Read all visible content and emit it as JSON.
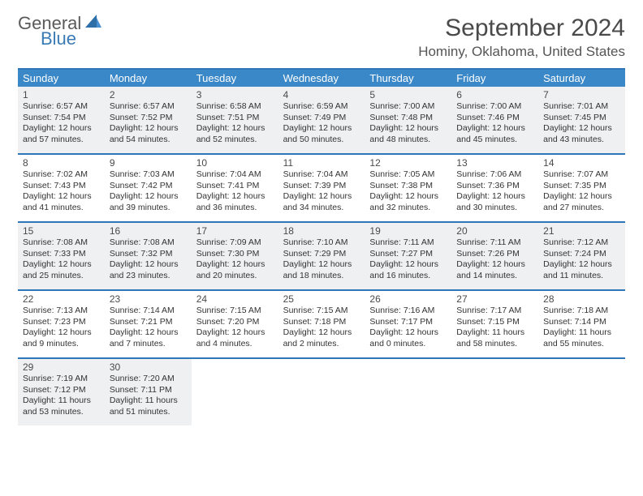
{
  "logo": {
    "general": "General",
    "blue": "Blue"
  },
  "title": "September 2024",
  "location": "Hominy, Oklahoma, United States",
  "colors": {
    "header_bg": "#3b88c8",
    "border": "#2f77b6",
    "shaded_bg": "#eef0f1",
    "text": "#333333",
    "logo_gray": "#5a5a5a",
    "logo_blue": "#3b7bb5"
  },
  "day_names": [
    "Sunday",
    "Monday",
    "Tuesday",
    "Wednesday",
    "Thursday",
    "Friday",
    "Saturday"
  ],
  "weeks": [
    {
      "shaded": true,
      "days": [
        {
          "n": "1",
          "sunrise": "Sunrise: 6:57 AM",
          "sunset": "Sunset: 7:54 PM",
          "day1": "Daylight: 12 hours",
          "day2": "and 57 minutes."
        },
        {
          "n": "2",
          "sunrise": "Sunrise: 6:57 AM",
          "sunset": "Sunset: 7:52 PM",
          "day1": "Daylight: 12 hours",
          "day2": "and 54 minutes."
        },
        {
          "n": "3",
          "sunrise": "Sunrise: 6:58 AM",
          "sunset": "Sunset: 7:51 PM",
          "day1": "Daylight: 12 hours",
          "day2": "and 52 minutes."
        },
        {
          "n": "4",
          "sunrise": "Sunrise: 6:59 AM",
          "sunset": "Sunset: 7:49 PM",
          "day1": "Daylight: 12 hours",
          "day2": "and 50 minutes."
        },
        {
          "n": "5",
          "sunrise": "Sunrise: 7:00 AM",
          "sunset": "Sunset: 7:48 PM",
          "day1": "Daylight: 12 hours",
          "day2": "and 48 minutes."
        },
        {
          "n": "6",
          "sunrise": "Sunrise: 7:00 AM",
          "sunset": "Sunset: 7:46 PM",
          "day1": "Daylight: 12 hours",
          "day2": "and 45 minutes."
        },
        {
          "n": "7",
          "sunrise": "Sunrise: 7:01 AM",
          "sunset": "Sunset: 7:45 PM",
          "day1": "Daylight: 12 hours",
          "day2": "and 43 minutes."
        }
      ]
    },
    {
      "shaded": false,
      "days": [
        {
          "n": "8",
          "sunrise": "Sunrise: 7:02 AM",
          "sunset": "Sunset: 7:43 PM",
          "day1": "Daylight: 12 hours",
          "day2": "and 41 minutes."
        },
        {
          "n": "9",
          "sunrise": "Sunrise: 7:03 AM",
          "sunset": "Sunset: 7:42 PM",
          "day1": "Daylight: 12 hours",
          "day2": "and 39 minutes."
        },
        {
          "n": "10",
          "sunrise": "Sunrise: 7:04 AM",
          "sunset": "Sunset: 7:41 PM",
          "day1": "Daylight: 12 hours",
          "day2": "and 36 minutes."
        },
        {
          "n": "11",
          "sunrise": "Sunrise: 7:04 AM",
          "sunset": "Sunset: 7:39 PM",
          "day1": "Daylight: 12 hours",
          "day2": "and 34 minutes."
        },
        {
          "n": "12",
          "sunrise": "Sunrise: 7:05 AM",
          "sunset": "Sunset: 7:38 PM",
          "day1": "Daylight: 12 hours",
          "day2": "and 32 minutes."
        },
        {
          "n": "13",
          "sunrise": "Sunrise: 7:06 AM",
          "sunset": "Sunset: 7:36 PM",
          "day1": "Daylight: 12 hours",
          "day2": "and 30 minutes."
        },
        {
          "n": "14",
          "sunrise": "Sunrise: 7:07 AM",
          "sunset": "Sunset: 7:35 PM",
          "day1": "Daylight: 12 hours",
          "day2": "and 27 minutes."
        }
      ]
    },
    {
      "shaded": true,
      "days": [
        {
          "n": "15",
          "sunrise": "Sunrise: 7:08 AM",
          "sunset": "Sunset: 7:33 PM",
          "day1": "Daylight: 12 hours",
          "day2": "and 25 minutes."
        },
        {
          "n": "16",
          "sunrise": "Sunrise: 7:08 AM",
          "sunset": "Sunset: 7:32 PM",
          "day1": "Daylight: 12 hours",
          "day2": "and 23 minutes."
        },
        {
          "n": "17",
          "sunrise": "Sunrise: 7:09 AM",
          "sunset": "Sunset: 7:30 PM",
          "day1": "Daylight: 12 hours",
          "day2": "and 20 minutes."
        },
        {
          "n": "18",
          "sunrise": "Sunrise: 7:10 AM",
          "sunset": "Sunset: 7:29 PM",
          "day1": "Daylight: 12 hours",
          "day2": "and 18 minutes."
        },
        {
          "n": "19",
          "sunrise": "Sunrise: 7:11 AM",
          "sunset": "Sunset: 7:27 PM",
          "day1": "Daylight: 12 hours",
          "day2": "and 16 minutes."
        },
        {
          "n": "20",
          "sunrise": "Sunrise: 7:11 AM",
          "sunset": "Sunset: 7:26 PM",
          "day1": "Daylight: 12 hours",
          "day2": "and 14 minutes."
        },
        {
          "n": "21",
          "sunrise": "Sunrise: 7:12 AM",
          "sunset": "Sunset: 7:24 PM",
          "day1": "Daylight: 12 hours",
          "day2": "and 11 minutes."
        }
      ]
    },
    {
      "shaded": false,
      "days": [
        {
          "n": "22",
          "sunrise": "Sunrise: 7:13 AM",
          "sunset": "Sunset: 7:23 PM",
          "day1": "Daylight: 12 hours",
          "day2": "and 9 minutes."
        },
        {
          "n": "23",
          "sunrise": "Sunrise: 7:14 AM",
          "sunset": "Sunset: 7:21 PM",
          "day1": "Daylight: 12 hours",
          "day2": "and 7 minutes."
        },
        {
          "n": "24",
          "sunrise": "Sunrise: 7:15 AM",
          "sunset": "Sunset: 7:20 PM",
          "day1": "Daylight: 12 hours",
          "day2": "and 4 minutes."
        },
        {
          "n": "25",
          "sunrise": "Sunrise: 7:15 AM",
          "sunset": "Sunset: 7:18 PM",
          "day1": "Daylight: 12 hours",
          "day2": "and 2 minutes."
        },
        {
          "n": "26",
          "sunrise": "Sunrise: 7:16 AM",
          "sunset": "Sunset: 7:17 PM",
          "day1": "Daylight: 12 hours",
          "day2": "and 0 minutes."
        },
        {
          "n": "27",
          "sunrise": "Sunrise: 7:17 AM",
          "sunset": "Sunset: 7:15 PM",
          "day1": "Daylight: 11 hours",
          "day2": "and 58 minutes."
        },
        {
          "n": "28",
          "sunrise": "Sunrise: 7:18 AM",
          "sunset": "Sunset: 7:14 PM",
          "day1": "Daylight: 11 hours",
          "day2": "and 55 minutes."
        }
      ]
    },
    {
      "shaded": true,
      "partial": true,
      "days": [
        {
          "n": "29",
          "sunrise": "Sunrise: 7:19 AM",
          "sunset": "Sunset: 7:12 PM",
          "day1": "Daylight: 11 hours",
          "day2": "and 53 minutes."
        },
        {
          "n": "30",
          "sunrise": "Sunrise: 7:20 AM",
          "sunset": "Sunset: 7:11 PM",
          "day1": "Daylight: 11 hours",
          "day2": "and 51 minutes."
        },
        {
          "empty": true
        },
        {
          "empty": true
        },
        {
          "empty": true
        },
        {
          "empty": true
        },
        {
          "empty": true
        }
      ]
    }
  ]
}
